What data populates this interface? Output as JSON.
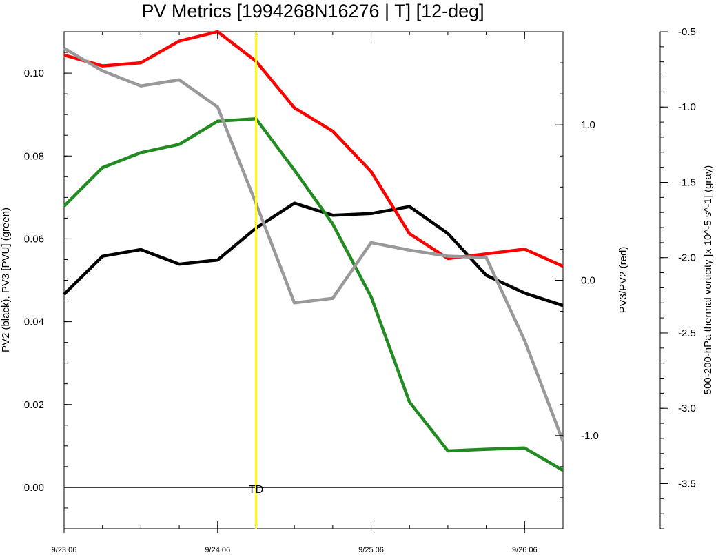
{
  "chart_data": {
    "type": "line",
    "title": "PV Metrics [1994268N16276 | T] [12-deg]",
    "x": [
      0,
      0.25,
      0.5,
      0.75,
      1.0,
      1.25,
      1.5,
      1.75,
      2.0,
      2.25,
      2.5,
      2.75,
      3.0,
      3.25
    ],
    "x_axis": {
      "ticks": [
        0,
        1,
        2,
        3
      ],
      "tick_labels": [
        "9/23 06",
        "9/24 06",
        "9/25 06",
        "9/26 06"
      ],
      "range": [
        0,
        3.25
      ]
    },
    "axes": {
      "left": {
        "label": "PV2 (black), PV3 [PVU] (green)",
        "range": [
          -0.01,
          0.11
        ],
        "ticks": [
          0.0,
          0.02,
          0.04,
          0.06,
          0.08,
          0.1
        ],
        "tick_labels": [
          "0.00",
          "0.02",
          "0.04",
          "0.06",
          "0.08",
          "0.10"
        ]
      },
      "right": {
        "label": "PV3/PV2 (red)",
        "range": [
          -1.6,
          1.6
        ],
        "ticks": [
          1.0,
          0.0,
          -1.0
        ],
        "tick_labels": [
          "1.0",
          "0.0",
          "-1.0"
        ]
      },
      "far_right": {
        "label": "500-200-hPa thermal vorticity [x 10^-5 s^-1] (gray)",
        "range": [
          -3.8,
          -0.5
        ],
        "ticks": [
          -0.5,
          -1.0,
          -1.5,
          -2.0,
          -2.5,
          -3.0,
          -3.5
        ],
        "tick_labels": [
          "-0.5",
          "-1.0",
          "-1.5",
          "-2.0",
          "-2.5",
          "-3.0",
          "-3.5"
        ]
      }
    },
    "series": [
      {
        "axis": "left",
        "color": "#000000",
        "values": [
          0.0466,
          0.0558,
          0.0574,
          0.0539,
          0.0549,
          0.0626,
          0.0686,
          0.0657,
          0.0661,
          0.0678,
          0.0613,
          0.0512,
          0.0469,
          0.0439
        ]
      },
      {
        "axis": "left",
        "color": "#228B22",
        "values": [
          0.0679,
          0.0772,
          0.0808,
          0.0828,
          0.0884,
          0.089,
          0.0766,
          0.0636,
          0.046,
          0.0206,
          0.0088,
          0.0092,
          0.0095,
          0.0041
        ]
      },
      {
        "axis": "right",
        "color": "#ff0000",
        "values": [
          1.45,
          1.38,
          1.4,
          1.54,
          1.6,
          1.41,
          1.11,
          0.96,
          0.7,
          0.3,
          0.14,
          0.17,
          0.2,
          0.09
        ]
      },
      {
        "axis": "far_right",
        "color": "#999999",
        "values": [
          -0.61,
          -0.76,
          -0.86,
          -0.82,
          -1.0,
          -1.64,
          -2.3,
          -2.27,
          -1.9,
          -1.95,
          -1.99,
          -2.0,
          -2.55,
          -3.22
        ]
      }
    ],
    "zero_line": {
      "axis": "left",
      "value": 0.0
    },
    "vline": {
      "x": 1.25,
      "color": "#ffff00",
      "label": "TD"
    },
    "grid": false
  }
}
